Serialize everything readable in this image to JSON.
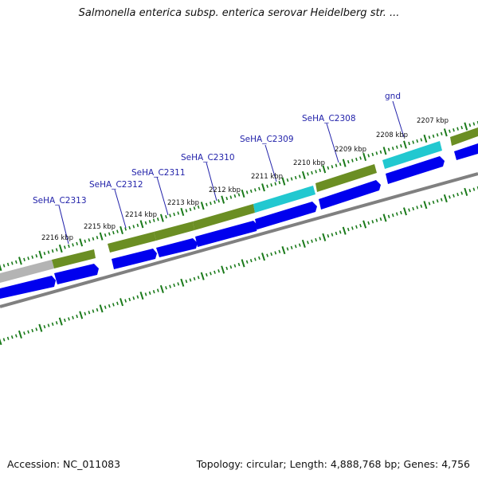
{
  "title": "Salmonella enterica subsp. enterica serovar Heidelberg str. ...",
  "footer": {
    "accession": "Accession: NC_011083",
    "summary": "Topology: circular; Length: 4,888,768 bp; Genes: 4,756"
  },
  "kbp_labels": [
    "2216 kbp",
    "2215 kbp",
    "2214 kbp",
    "2213 kbp",
    "2212 kbp",
    "2211 kbp",
    "2210 kbp",
    "2209 kbp",
    "2208 kbp",
    "2207 kbp"
  ],
  "gene_labels": [
    "SeHA_C2313",
    "SeHA_C2312",
    "SeHA_C2311",
    "SeHA_C2310",
    "SeHA_C2309",
    "SeHA_C2308",
    "gnd"
  ],
  "colors": {
    "olive_feature": "#6b8e23",
    "cyan_feature": "#22c8d0",
    "grey_feature": "#b0b0b0",
    "cds_arrow": "#0000ee",
    "backbone": "#808080",
    "tick": "#1a7a1a",
    "label_line": "#2222aa"
  }
}
